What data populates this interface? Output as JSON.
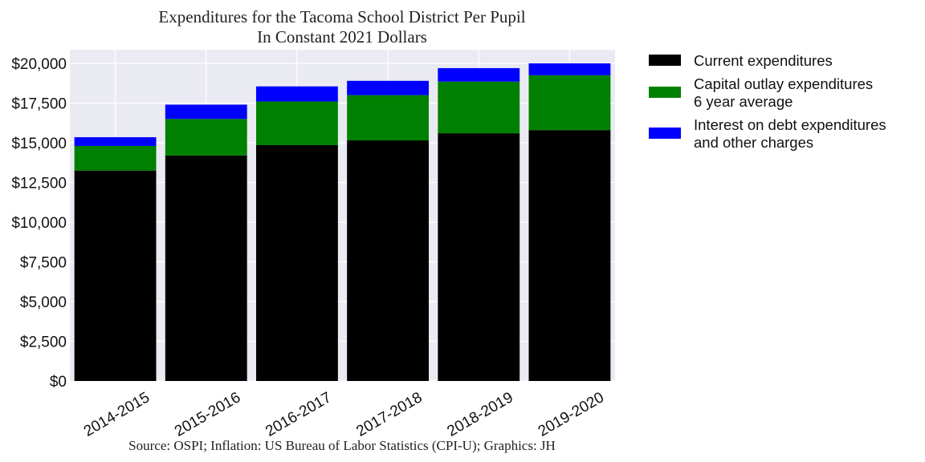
{
  "chart_data": {
    "type": "bar",
    "stacked": true,
    "title": "Expenditures for the Tacoma School District Per Pupil",
    "subtitle": "In Constant 2021 Dollars",
    "source": "Source: OSPI; Inflation: US Bureau of Labor Statistics (CPI-U); Graphics: JH",
    "categories": [
      "2014-2015",
      "2015-2016",
      "2016-2017",
      "2017-2018",
      "2018-2019",
      "2019-2020"
    ],
    "series": [
      {
        "name": "Current expenditures",
        "color": "#000000",
        "values": [
          13250,
          14200,
          14850,
          15150,
          15600,
          15800
        ]
      },
      {
        "name": "Capital outlay expenditures\n6 year average",
        "color": "#008000",
        "values": [
          1550,
          2300,
          2750,
          2850,
          3250,
          3450
        ]
      },
      {
        "name": "Interest on debt expenditures\nand other charges",
        "color": "#0000ff",
        "values": [
          550,
          900,
          950,
          900,
          850,
          750
        ]
      }
    ],
    "ylim": [
      0,
      20000
    ],
    "yticks": [
      0,
      2500,
      5000,
      7500,
      10000,
      12500,
      15000,
      17500,
      20000
    ],
    "ytick_labels": [
      "$0",
      "$2,500",
      "$5,000",
      "$7,500",
      "$10,000",
      "$12,500",
      "$15,000",
      "$17,500",
      "$20,000"
    ],
    "grid": true,
    "legend_position": "outside-right-top",
    "background_color": "#eaeaf2"
  }
}
